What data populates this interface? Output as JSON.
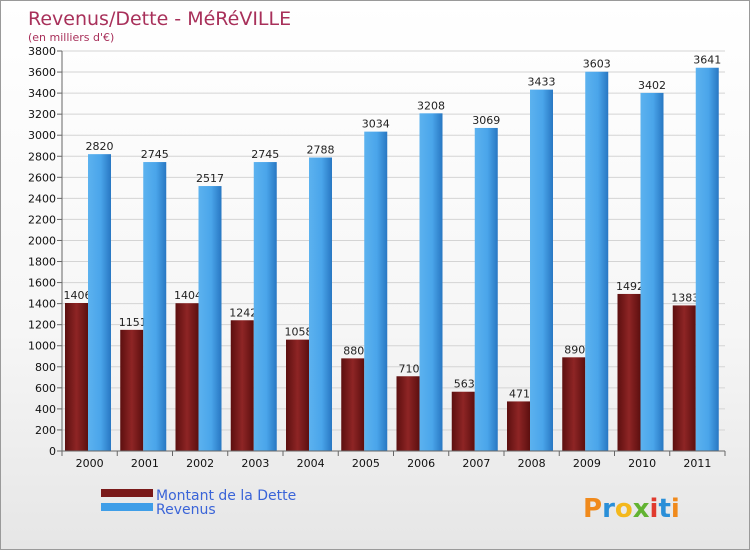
{
  "colors": {
    "dette": "#7a1a1a",
    "revenus": "#3f9ee8",
    "title": "#a8305a",
    "legend_text": "#3a64d8"
  },
  "brand": {
    "name": "Proxiti"
  },
  "chart_data": {
    "type": "bar",
    "title": "Revenus/Dette - MéRéVILLE",
    "subtitle": "(en milliers d'€)",
    "categories": [
      "2000",
      "2001",
      "2002",
      "2003",
      "2004",
      "2005",
      "2006",
      "2007",
      "2008",
      "2009",
      "2010",
      "2011"
    ],
    "series": [
      {
        "name": "Montant de la Dette",
        "color": "#7a1a1a",
        "values": [
          1406,
          1151,
          1404,
          1242,
          1058,
          880,
          710,
          563,
          471,
          890,
          1492,
          1383
        ],
        "labels": [
          "1406",
          "1151",
          "1404",
          "1242",
          "1058",
          "880",
          "710",
          "563",
          "471",
          "890",
          "1492",
          "1383"
        ]
      },
      {
        "name": "Revenus",
        "color": "#3f9ee8",
        "values": [
          2820,
          2745,
          2517,
          2745,
          2788,
          3034,
          3208,
          3069,
          3433,
          3603,
          3402,
          3641
        ],
        "labels": [
          "2820",
          "2745",
          "2517",
          "2745",
          "2788",
          "3034",
          "3208",
          "3069",
          "3433",
          "3603",
          "3402",
          "3641"
        ]
      }
    ],
    "yticks": [
      0,
      200,
      400,
      600,
      800,
      1000,
      1200,
      1400,
      1600,
      1800,
      2000,
      2200,
      2400,
      2600,
      2800,
      3000,
      3200,
      3400,
      3600,
      3800
    ],
    "ylim": [
      0,
      3800
    ],
    "grid": true,
    "legend_position": "bottom-left"
  }
}
